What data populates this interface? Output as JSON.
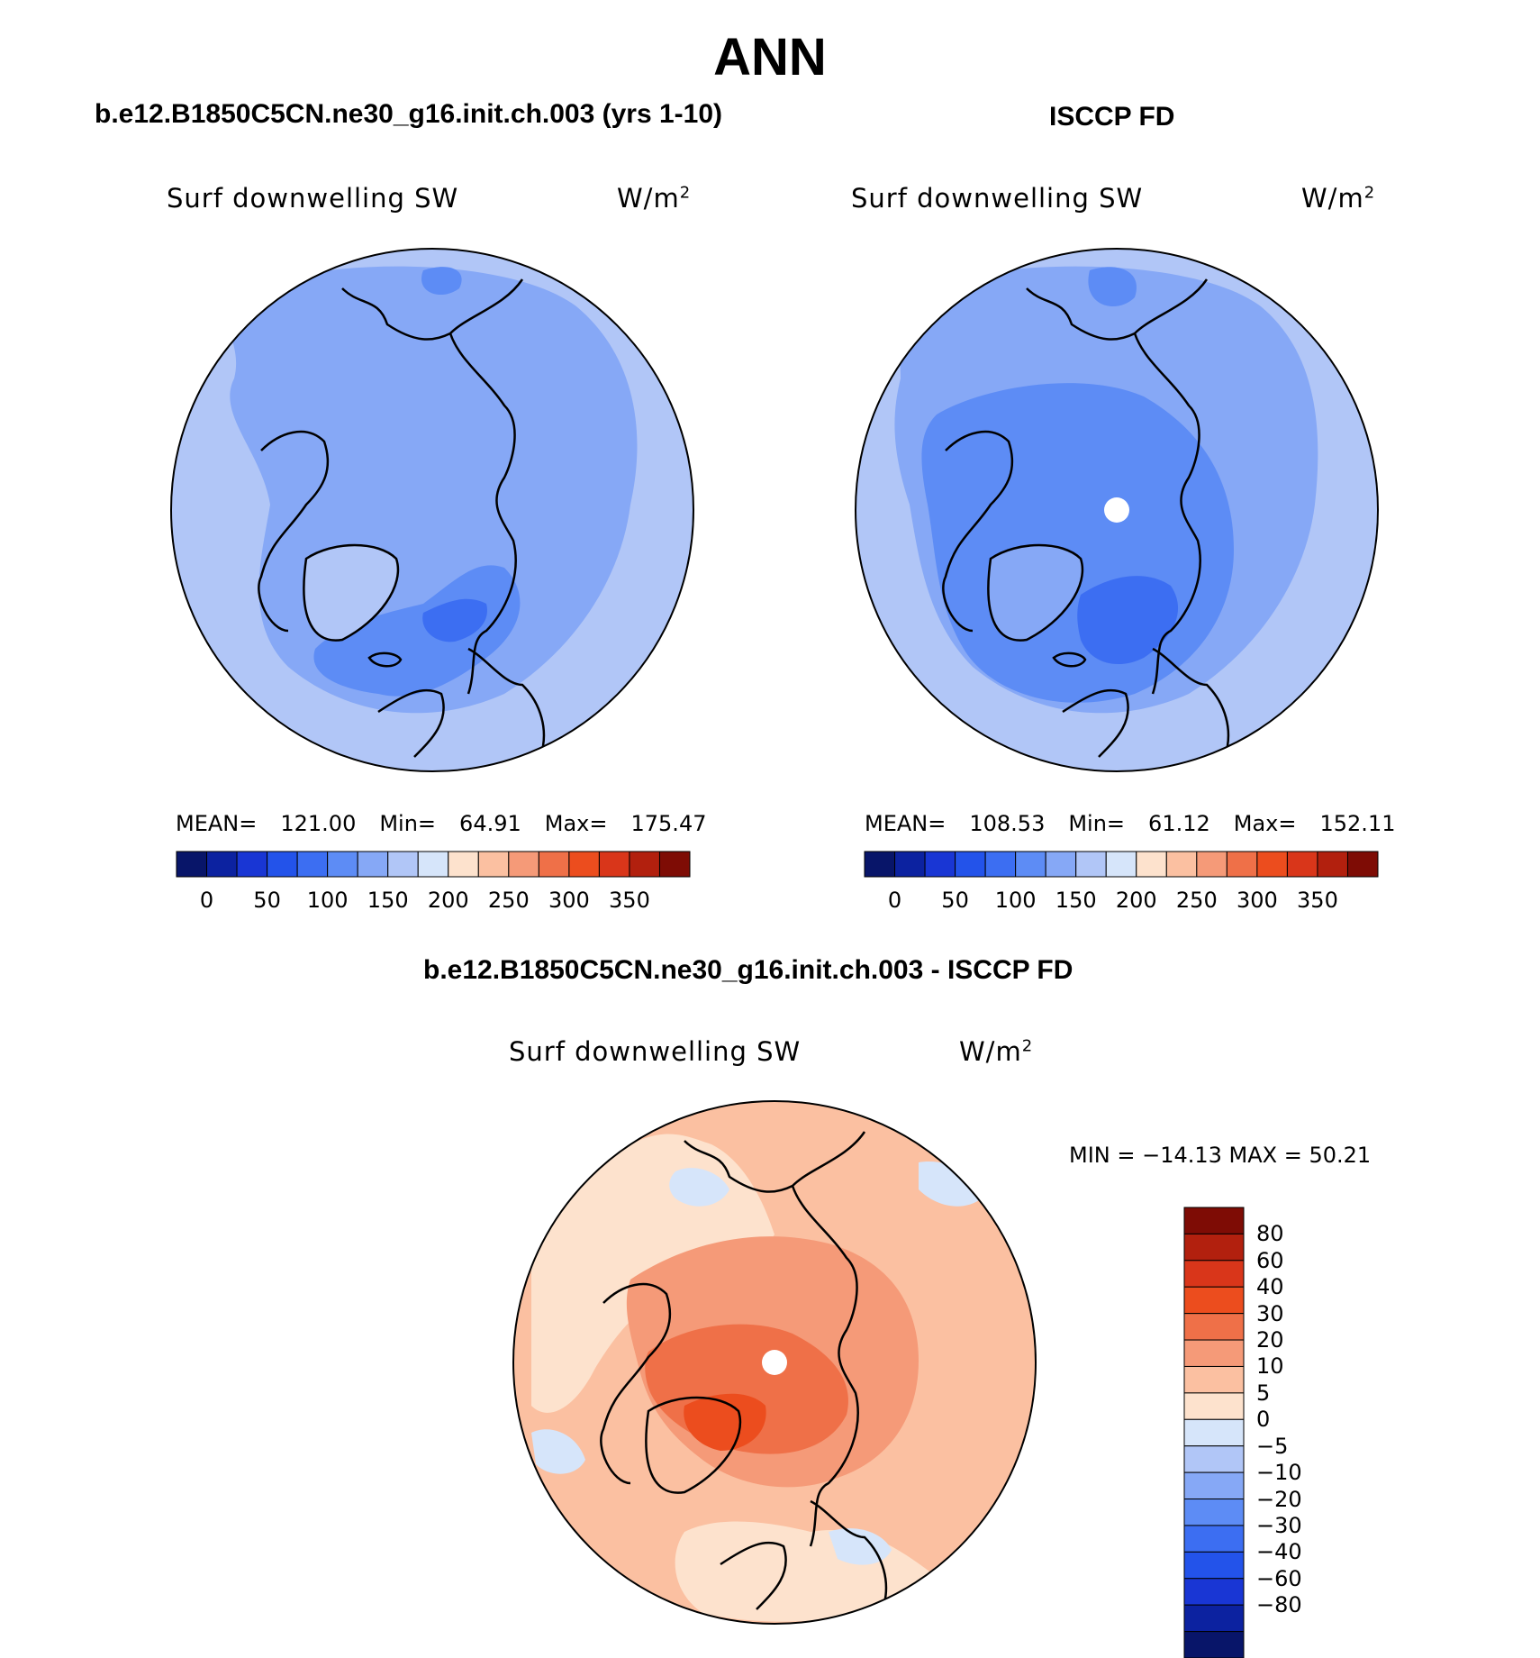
{
  "figure": {
    "title": "ANN",
    "left_title": "b.e12.B1850C5CN.ne30_g16.init.ch.003 (yrs 1-10)",
    "right_title": "ISCCP FD",
    "diff_title": "b.e12.B1850C5CN.ne30_g16.init.ch.003 - ISCCP FD"
  },
  "panels": {
    "model": {
      "variable": "Surf downwelling SW",
      "units": "W/m",
      "units_sup": "2",
      "mean_label": "MEAN=",
      "mean": "121.00",
      "min_label": "Min=",
      "min": "64.91",
      "max_label": "Max=",
      "max": "175.47"
    },
    "obs": {
      "variable": "Surf downwelling SW",
      "units": "W/m",
      "units_sup": "2",
      "mean_label": "MEAN=",
      "mean": "108.53",
      "min_label": "Min=",
      "min": "61.12",
      "max_label": "Max=",
      "max": "152.11"
    },
    "diff": {
      "variable": "Surf downwelling SW",
      "units": "W/m",
      "units_sup": "2",
      "stats": "MIN = −14.13 MAX =   50.21"
    }
  },
  "colorbars": {
    "abs": {
      "colors": [
        "#081569",
        "#0c22a0",
        "#1936d4",
        "#2353ea",
        "#3c6ef2",
        "#5d8cf5",
        "#86a8f6",
        "#b1c6f7",
        "#d6e5fa",
        "#fde2cd",
        "#fbc0a1",
        "#f59a78",
        "#ef7048",
        "#ec4d1e",
        "#d9361a",
        "#b2200e",
        "#7e0c05"
      ],
      "labels": [
        "0",
        "50",
        "100",
        "150",
        "200",
        "250",
        "300",
        "350"
      ]
    },
    "diff": {
      "colors": [
        "#081569",
        "#0c22a0",
        "#1936d4",
        "#2353ea",
        "#3c6ef2",
        "#5d8cf5",
        "#86a8f6",
        "#b1c6f7",
        "#d6e5fa",
        "#fde2cd",
        "#fbc0a1",
        "#f59a78",
        "#ef7048",
        "#ec4d1e",
        "#d9361a",
        "#b2200e",
        "#7e0c05"
      ],
      "labels": [
        "80",
        "60",
        "40",
        "30",
        "20",
        "10",
        "5",
        "0",
        "−5",
        "−10",
        "−20",
        "−30",
        "−40",
        "−60",
        "−80"
      ]
    }
  },
  "map_colors": {
    "c90": "#b1c6f7",
    "c110": "#86a8f6",
    "c130": "#5d8cf5",
    "c150": "#3c6ef2",
    "c170": "#2353ea",
    "d_neg5": "#d6e5fa",
    "d_neg10": "#b1c6f7",
    "d_pos0": "#fde2cd",
    "d_pos5": "#fbc0a1",
    "d_pos10": "#f59a78",
    "d_pos20": "#ef7048",
    "d_pos30": "#ec4d1e"
  }
}
